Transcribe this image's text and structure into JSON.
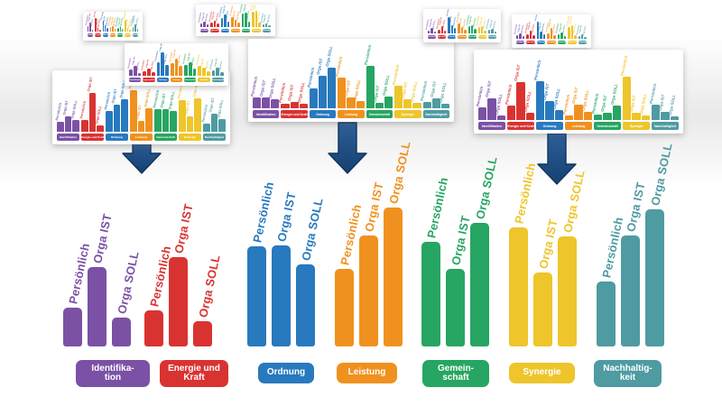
{
  "page": {
    "background": "#ffffff"
  },
  "colors": {
    "purple": "#7b51a5",
    "red": "#d93331",
    "blue": "#2879be",
    "orange": "#f0911f",
    "green": "#27a562",
    "yellow": "#eec52a",
    "teal": "#4e9ba2",
    "arrow_fill_light": "#2d5f99",
    "arrow_fill_dark": "#16406f",
    "arrow_stroke": "#0f3560",
    "card_bg": "#ffffff",
    "pill_text": "#ffffff"
  },
  "chart_data": {
    "type": "bar",
    "title": "",
    "subtitle": "",
    "categories": [
      "Identifikation",
      "Energie und Kraft",
      "Ordnung",
      "Leistung",
      "Gemeinschaft",
      "Synergie",
      "Nachhaltigkeit"
    ],
    "category_label_lines": [
      [
        "Identifika-",
        "tion"
      ],
      [
        "Energie und",
        "Kraft"
      ],
      [
        "Ordnung"
      ],
      [
        "Leistung"
      ],
      [
        "Gemein-",
        "schaft"
      ],
      [
        "Synergie"
      ],
      [
        "Nachhaltig-",
        "keit"
      ]
    ],
    "group_colors": [
      "#7b51a5",
      "#d93331",
      "#2879be",
      "#f0911f",
      "#27a562",
      "#eec52a",
      "#4e9ba2"
    ],
    "series": [
      {
        "name": "Persönlich",
        "values": [
          28,
          26,
          72,
          56,
          75,
          86,
          47
        ]
      },
      {
        "name": "Orga IST",
        "values": [
          57,
          64,
          73,
          80,
          56,
          53,
          80
        ]
      },
      {
        "name": "Orga SOLL",
        "values": [
          21,
          18,
          59,
          100,
          89,
          79,
          99
        ]
      }
    ],
    "ylim": [
      0,
      100
    ],
    "unit": "relative bar height % (no value axis shown in figure)",
    "legend_position": "labels rotated above each bar",
    "grid": false
  },
  "thumbnails": [
    {
      "id": "t1",
      "groups": [
        [
          30,
          55,
          12
        ],
        [
          80,
          20,
          10
        ],
        [
          65,
          35,
          20
        ],
        [
          25,
          30,
          15
        ],
        [
          20,
          25,
          18
        ],
        [
          70,
          20,
          12
        ],
        [
          25,
          40,
          15
        ]
      ]
    },
    {
      "id": "t2",
      "groups": [
        [
          20,
          30,
          15
        ],
        [
          25,
          35,
          20
        ],
        [
          50,
          70,
          30
        ],
        [
          55,
          40,
          25
        ],
        [
          75,
          80,
          30
        ],
        [
          85,
          90,
          25
        ],
        [
          15,
          20,
          10
        ]
      ]
    },
    {
      "id": "t3",
      "groups": [
        [
          25,
          40,
          12
        ],
        [
          18,
          28,
          15
        ],
        [
          55,
          95,
          45
        ],
        [
          50,
          70,
          40
        ],
        [
          45,
          55,
          30
        ],
        [
          40,
          35,
          20
        ],
        [
          22,
          35,
          15
        ]
      ]
    },
    {
      "id": "t4",
      "groups": [
        [
          22,
          35,
          28
        ],
        [
          28,
          90,
          15
        ],
        [
          48,
          62,
          75
        ],
        [
          95,
          25,
          55
        ],
        [
          52,
          52,
          48
        ],
        [
          72,
          35,
          78
        ],
        [
          18,
          42,
          30
        ]
      ]
    },
    {
      "id": "t5",
      "groups": [
        [
          22,
          22,
          18
        ],
        [
          10,
          14,
          10
        ],
        [
          42,
          68,
          85
        ],
        [
          65,
          22,
          15
        ],
        [
          88,
          12,
          25
        ],
        [
          48,
          18,
          12
        ],
        [
          14,
          20,
          10
        ]
      ]
    },
    {
      "id": "t6",
      "groups": [
        [
          15,
          30,
          10
        ],
        [
          20,
          40,
          15
        ],
        [
          85,
          45,
          30
        ],
        [
          50,
          35,
          20
        ],
        [
          40,
          45,
          25
        ],
        [
          35,
          40,
          15
        ],
        [
          20,
          25,
          10
        ]
      ]
    },
    {
      "id": "t7",
      "groups": [
        [
          20,
          30,
          12
        ],
        [
          25,
          45,
          18
        ],
        [
          90,
          40,
          25
        ],
        [
          30,
          55,
          20
        ],
        [
          25,
          35,
          15
        ],
        [
          60,
          70,
          20
        ],
        [
          15,
          25,
          10
        ]
      ]
    },
    {
      "id": "t8",
      "groups": [
        [
          25,
          45,
          10
        ],
        [
          30,
          78,
          14
        ],
        [
          80,
          38,
          20
        ],
        [
          10,
          32,
          16
        ],
        [
          12,
          14,
          30
        ],
        [
          88,
          14,
          10
        ],
        [
          32,
          16,
          8
        ]
      ]
    }
  ]
}
